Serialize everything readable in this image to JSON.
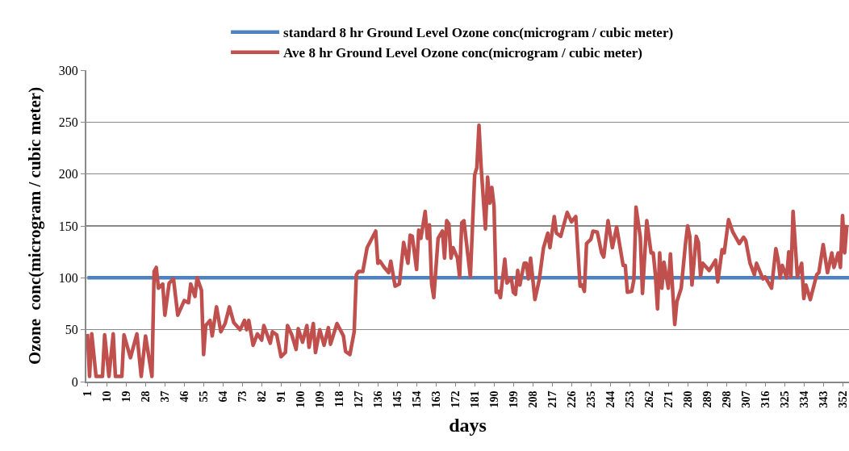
{
  "chart_data": {
    "type": "line",
    "xlabel": "days",
    "ylabel": "Ozone  conc(microgram / cubic meter)",
    "xlim": [
      0.5,
      355
    ],
    "ylim": [
      0,
      300
    ],
    "xticks": [
      1,
      10,
      19,
      28,
      37,
      46,
      55,
      64,
      73,
      82,
      91,
      100,
      109,
      118,
      127,
      136,
      145,
      154,
      163,
      172,
      181,
      190,
      199,
      208,
      217,
      226,
      235,
      244,
      253,
      262,
      271,
      280,
      289,
      298,
      307,
      316,
      325,
      334,
      343,
      352
    ],
    "yticks": [
      0,
      50,
      100,
      150,
      200,
      250,
      300
    ],
    "grid": "y",
    "legend": "top",
    "marker": "none",
    "line_style": "solid",
    "series": [
      {
        "name": "standard 8 hr Ground Level Ozone conc(microgram / cubic meter)",
        "color": "#4f81bd",
        "x": [
          1,
          355
        ],
        "values": [
          100,
          100
        ]
      },
      {
        "name": "Ave 8 hr Ground Level Ozone conc(microgram / cubic meter)",
        "color": "#c0504d",
        "x": [
          1,
          2,
          3,
          5,
          8,
          9,
          11,
          13,
          14,
          17,
          18,
          21,
          24,
          26,
          28,
          31,
          32,
          33,
          34,
          36,
          37,
          39,
          41,
          43,
          46,
          48,
          49,
          51,
          52,
          54,
          55,
          56,
          58,
          59,
          61,
          63,
          65,
          67,
          69,
          72,
          74,
          75,
          76,
          78,
          80,
          82,
          83,
          86,
          87,
          89,
          91,
          93,
          94,
          96,
          98,
          99,
          101,
          103,
          104,
          106,
          107,
          109,
          111,
          113,
          114,
          117,
          120,
          121,
          123,
          125,
          126,
          127,
          129,
          131,
          135,
          136,
          137,
          139,
          141,
          142,
          144,
          146,
          148,
          150,
          151,
          152,
          154,
          155,
          156,
          158,
          159,
          160,
          161,
          162,
          164,
          166,
          167,
          168,
          169,
          170,
          171,
          173,
          174,
          175,
          176,
          179,
          181,
          182,
          183,
          184,
          186,
          187,
          188,
          189,
          190,
          191,
          192,
          193,
          195,
          196,
          198,
          199,
          200,
          201,
          202,
          204,
          205,
          206,
          207,
          209,
          211,
          213,
          215,
          216,
          218,
          219,
          221,
          224,
          226,
          228,
          230,
          231,
          232,
          233,
          235,
          236,
          238,
          240,
          241,
          243,
          245,
          247,
          250,
          251,
          252,
          254,
          255,
          256,
          258,
          259,
          261,
          263,
          264,
          265,
          266,
          267,
          268,
          269,
          271,
          272,
          274,
          275,
          277,
          279,
          280,
          281,
          282,
          284,
          285,
          286,
          287,
          290,
          293,
          294,
          296,
          297,
          299,
          301,
          304,
          306,
          307,
          309,
          311,
          312,
          315,
          316,
          319,
          321,
          322,
          323,
          324,
          326,
          327,
          328,
          329,
          331,
          333,
          334,
          335,
          337,
          338,
          340,
          341,
          343,
          345,
          346,
          347,
          348,
          350,
          351,
          352,
          353,
          354
        ],
        "values": [
          46,
          5,
          46,
          5,
          5,
          45,
          5,
          46,
          5,
          5,
          45,
          23,
          46,
          5,
          44,
          5,
          106,
          110,
          90,
          94,
          64,
          95,
          99,
          64,
          78,
          76,
          94,
          82,
          100,
          88,
          26,
          54,
          59,
          44,
          72,
          48,
          56,
          72,
          57,
          50,
          59,
          50,
          59,
          35,
          46,
          40,
          54,
          37,
          48,
          45,
          24,
          28,
          54,
          45,
          31,
          51,
          38,
          54,
          33,
          56,
          28,
          50,
          35,
          52,
          36,
          56,
          44,
          29,
          26,
          48,
          103,
          106,
          106,
          129,
          145,
          114,
          116,
          110,
          105,
          116,
          92,
          94,
          134,
          114,
          141,
          140,
          108,
          146,
          138,
          164,
          138,
          151,
          94,
          81,
          138,
          145,
          119,
          155,
          152,
          119,
          129,
          119,
          101,
          153,
          155,
          101,
          199,
          206,
          247,
          207,
          147,
          197,
          172,
          187,
          169,
          86,
          87,
          81,
          118,
          95,
          100,
          86,
          84,
          107,
          93,
          114,
          114,
          99,
          119,
          79,
          98,
          129,
          143,
          129,
          159,
          143,
          140,
          163,
          154,
          159,
          92,
          93,
          87,
          133,
          137,
          145,
          144,
          124,
          120,
          155,
          129,
          149,
          112,
          112,
          86,
          87,
          98,
          168,
          139,
          85,
          155,
          124,
          124,
          103,
          70,
          124,
          90,
          115,
          90,
          123,
          55,
          77,
          90,
          133,
          150,
          140,
          93,
          140,
          134,
          102,
          114,
          107,
          117,
          96,
          127,
          124,
          156,
          144,
          133,
          139,
          136,
          114,
          103,
          114,
          99,
          101,
          90,
          128,
          118,
          100,
          112,
          100,
          125,
          101,
          164,
          101,
          114,
          80,
          93,
          79,
          87,
          103,
          105,
          132,
          105,
          114,
          124,
          110,
          124,
          110,
          160,
          124,
          151
        ]
      }
    ]
  }
}
